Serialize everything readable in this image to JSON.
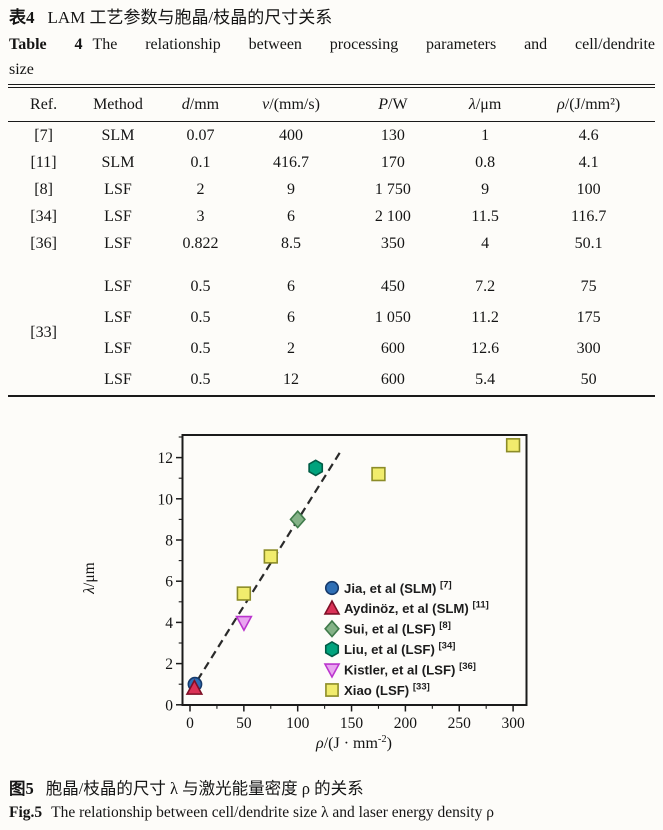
{
  "table_block": {
    "title_zh_label": "表4",
    "title_zh_text": "LAM 工艺参数与胞晶/枝晶的尺寸关系",
    "title_en_label": "Table 4",
    "title_en_text": "The relationship between processing parameters and cell/dendrite",
    "title_en_text2": "size",
    "headers": [
      {
        "text": "Ref."
      },
      {
        "text": "Method"
      },
      {
        "i": "d",
        "rest": "/mm"
      },
      {
        "i": "v",
        "rest": "/(mm/s)"
      },
      {
        "i": "P",
        "rest": "/W"
      },
      {
        "i": "λ",
        "rest": "/μm"
      },
      {
        "i": "ρ",
        "rest": "/(J/mm²)"
      }
    ],
    "rows": [
      {
        "ref": "[7]",
        "method": "SLM",
        "d": "0.07",
        "v": "400",
        "P": "130",
        "lambda": "1",
        "rho": "4.6"
      },
      {
        "ref": "[11]",
        "method": "SLM",
        "d": "0.1",
        "v": "416.7",
        "P": "170",
        "lambda": "0.8",
        "rho": "4.1"
      },
      {
        "ref": "[8]",
        "method": "LSF",
        "d": "2",
        "v": "9",
        "P": "1 750",
        "lambda": "9",
        "rho": "100"
      },
      {
        "ref": "[34]",
        "method": "LSF",
        "d": "3",
        "v": "6",
        "P": "2 100",
        "lambda": "11.5",
        "rho": "116.7"
      },
      {
        "ref": "[36]",
        "method": "LSF",
        "d": "0.822",
        "v": "8.5",
        "P": "350",
        "lambda": "4",
        "rho": "50.1"
      }
    ],
    "group": {
      "ref": "[33]",
      "rows": [
        {
          "method": "LSF",
          "d": "0.5",
          "v": "6",
          "P": "450",
          "lambda": "7.2",
          "rho": "75"
        },
        {
          "method": "LSF",
          "d": "0.5",
          "v": "6",
          "P": "1 050",
          "lambda": "11.2",
          "rho": "175"
        },
        {
          "method": "LSF",
          "d": "0.5",
          "v": "2",
          "P": "600",
          "lambda": "12.6",
          "rho": "300"
        },
        {
          "method": "LSF",
          "d": "0.5",
          "v": "12",
          "P": "600",
          "lambda": "5.4",
          "rho": "50"
        }
      ]
    }
  },
  "chart_data": {
    "type": "scatter",
    "xlabel": "ρ/(J · mm⁻²)",
    "xlabel_parts": {
      "italic": "ρ",
      "mid": "/(J · mm",
      "sup": "-2",
      "end": ")"
    },
    "ylabel": "λ/μm",
    "ylabel_parts": {
      "italic": "λ",
      "rest": "/μm"
    },
    "xlim": [
      -15,
      312
    ],
    "ylim": [
      0,
      13.1
    ],
    "x_ticks": [
      0,
      50,
      100,
      150,
      200,
      250,
      300
    ],
    "y_ticks": [
      0,
      2,
      4,
      6,
      8,
      10,
      12
    ],
    "x_minor_ticks": [
      25,
      75,
      125,
      175,
      225,
      275
    ],
    "y_minor_ticks": [
      1,
      3,
      5,
      7,
      9,
      11,
      13
    ],
    "grid": "off",
    "legend_position": "inside-right-middle",
    "trendline": {
      "style": "dashed",
      "color": "#2a2a2a",
      "x1": 7,
      "y1": 1.2,
      "x2": 141,
      "y2": 12.4
    },
    "series": [
      {
        "name": "Jia, et al (SLM)",
        "ref": "[7]",
        "marker": "circle",
        "fill": "#2f6fb5",
        "edge": "#173a6b",
        "points": [
          [
            4.6,
            1
          ]
        ]
      },
      {
        "name": "Aydinöz, et al (SLM)",
        "ref": "[11]",
        "marker": "triangle-up",
        "fill": "#da3156",
        "edge": "#7e0f26",
        "points": [
          [
            4.1,
            0.8
          ]
        ]
      },
      {
        "name": "Sui, et al (LSF)",
        "ref": "[8]",
        "marker": "diamond",
        "fill": "#84b287",
        "edge": "#3f7a4a",
        "points": [
          [
            100,
            9
          ]
        ]
      },
      {
        "name": "Liu, et al (LSF)",
        "ref": "[34]",
        "marker": "hexagon",
        "fill": "#00a37d",
        "edge": "#015c46",
        "points": [
          [
            116.7,
            11.5
          ]
        ]
      },
      {
        "name": "Kistler, et al (LSF)",
        "ref": "[36]",
        "marker": "triangle-down",
        "fill": "#e9a4f0",
        "edge": "#bb35ce",
        "points": [
          [
            50.1,
            4
          ]
        ]
      },
      {
        "name": "Xiao (LSF)",
        "ref": "[33]",
        "marker": "square",
        "fill": "#f1ec6d",
        "edge": "#8c8c28",
        "points": [
          [
            75,
            7.2
          ],
          [
            175,
            11.2
          ],
          [
            300,
            12.6
          ],
          [
            50,
            5.4
          ]
        ]
      }
    ]
  },
  "figure_caption": {
    "zh_label": "图5",
    "zh_text": "胞晶/枝晶的尺寸 λ 与激光能量密度 ρ 的关系",
    "en_label": "Fig.5",
    "en_text": "The relationship between cell/dendrite size λ and laser energy density ρ"
  }
}
